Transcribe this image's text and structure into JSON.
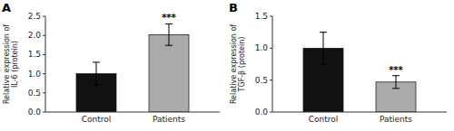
{
  "chart_data": [
    {
      "type": "bar",
      "title": "A",
      "categories": [
        "Control",
        "Patients"
      ],
      "values": [
        1.0,
        2.02
      ],
      "errors": [
        0.3,
        0.28
      ],
      "colors": [
        "#111111",
        "#aaaaaa"
      ],
      "y_label": "Relative expression of\nIL-6 (protein)",
      "ylim": [
        0,
        2.5
      ],
      "yticks": [
        {
          "value": 0,
          "label": "0.0"
        },
        0.5,
        {
          "value": 1,
          "label": "1.0"
        },
        1.5,
        {
          "value": 2,
          "label": "2.0"
        },
        2.5
      ],
      "annotations": [
        {
          "text": "***",
          "category": "Patients"
        }
      ],
      "grid": false
    },
    {
      "type": "bar",
      "title": "B",
      "categories": [
        "Control",
        "Patients"
      ],
      "values": [
        1.0,
        0.47
      ],
      "errors": [
        0.25,
        0.1
      ],
      "colors": [
        "#111111",
        "#aaaaaa"
      ],
      "y_label": "Relative expression of\nTGF-β (protein)",
      "ylim": [
        0,
        1.5
      ],
      "yticks": [
        {
          "value": 0,
          "label": "0.0"
        },
        0.5,
        {
          "value": 1,
          "label": "1.0"
        },
        1.5
      ],
      "annotations": [
        {
          "text": "***",
          "category": "Patients"
        }
      ],
      "grid": false
    }
  ]
}
